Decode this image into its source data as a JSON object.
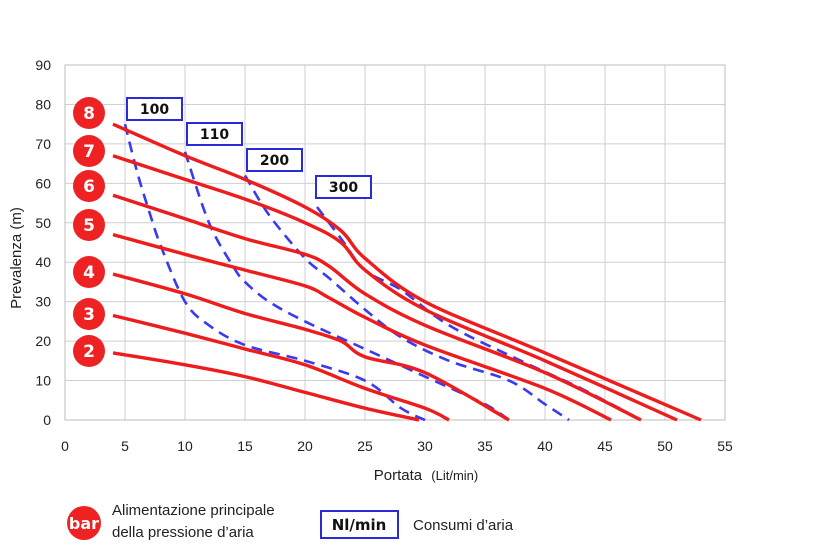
{
  "chart_data": {
    "type": "line",
    "xlabel": "Portata",
    "xlabel_unit": "(Lit/min)",
    "ylabel": "Prevalenza (m)",
    "xlim": [
      0,
      55
    ],
    "ylim": [
      0,
      90
    ],
    "xticks": [
      0,
      5,
      10,
      15,
      20,
      25,
      30,
      35,
      40,
      45,
      50,
      55
    ],
    "yticks": [
      0,
      10,
      20,
      30,
      40,
      50,
      60,
      70,
      80,
      90
    ],
    "grid": true,
    "pressure_series": [
      {
        "name": "8",
        "points": [
          [
            4,
            75
          ],
          [
            10,
            67
          ],
          [
            15,
            61
          ],
          [
            20,
            54
          ],
          [
            23,
            48
          ],
          [
            25,
            41
          ],
          [
            30,
            30
          ],
          [
            40,
            17
          ],
          [
            53,
            0
          ]
        ]
      },
      {
        "name": "7",
        "points": [
          [
            4,
            67
          ],
          [
            10,
            61
          ],
          [
            15,
            56
          ],
          [
            20,
            50
          ],
          [
            23,
            45
          ],
          [
            25,
            38
          ],
          [
            30,
            28
          ],
          [
            40,
            15
          ],
          [
            51,
            0
          ]
        ]
      },
      {
        "name": "6",
        "points": [
          [
            4,
            57
          ],
          [
            10,
            51
          ],
          [
            15,
            46
          ],
          [
            20,
            42
          ],
          [
            22,
            39
          ],
          [
            25,
            32
          ],
          [
            30,
            24
          ],
          [
            40,
            12
          ],
          [
            48,
            0
          ]
        ]
      },
      {
        "name": "5",
        "points": [
          [
            4,
            47
          ],
          [
            10,
            42
          ],
          [
            15,
            38
          ],
          [
            20,
            34
          ],
          [
            22,
            31
          ],
          [
            25,
            26
          ],
          [
            30,
            19
          ],
          [
            40,
            8
          ],
          [
            45.5,
            0
          ]
        ]
      },
      {
        "name": "4",
        "points": [
          [
            4,
            37
          ],
          [
            10,
            32
          ],
          [
            15,
            27
          ],
          [
            20,
            23
          ],
          [
            23,
            20
          ],
          [
            25,
            16
          ],
          [
            30,
            12
          ],
          [
            37,
            0
          ]
        ]
      },
      {
        "name": "3",
        "points": [
          [
            4,
            26.5
          ],
          [
            10,
            22
          ],
          [
            15,
            18
          ],
          [
            20,
            14
          ],
          [
            25,
            8
          ],
          [
            30,
            3
          ],
          [
            32,
            0
          ]
        ]
      },
      {
        "name": "2",
        "points": [
          [
            4,
            17
          ],
          [
            10,
            14
          ],
          [
            15,
            11
          ],
          [
            20,
            7
          ],
          [
            25,
            3
          ],
          [
            29.5,
            0
          ]
        ]
      }
    ],
    "consumption_series": [
      {
        "name": "100",
        "points": [
          [
            5,
            75
          ],
          [
            6,
            63
          ],
          [
            7,
            53
          ],
          [
            8,
            44
          ],
          [
            10,
            30
          ],
          [
            12,
            24
          ],
          [
            15,
            19
          ],
          [
            20,
            15
          ],
          [
            25,
            10
          ],
          [
            28,
            3
          ],
          [
            30,
            0
          ]
        ]
      },
      {
        "name": "110",
        "points": [
          [
            10,
            68
          ],
          [
            12,
            50
          ],
          [
            14,
            39
          ],
          [
            15,
            35
          ],
          [
            17,
            30
          ],
          [
            20,
            25
          ],
          [
            25,
            18
          ],
          [
            30,
            11
          ],
          [
            35,
            4
          ],
          [
            37,
            0
          ]
        ]
      },
      {
        "name": "200",
        "points": [
          [
            15,
            62
          ],
          [
            17,
            52
          ],
          [
            20,
            41
          ],
          [
            22,
            36
          ],
          [
            25,
            28
          ],
          [
            28,
            21
          ],
          [
            32,
            15
          ],
          [
            37,
            10
          ],
          [
            40,
            4
          ],
          [
            42,
            0
          ]
        ]
      },
      {
        "name": "300",
        "points": [
          [
            21,
            54
          ],
          [
            23,
            46
          ],
          [
            25,
            38
          ],
          [
            28,
            33
          ],
          [
            32,
            24
          ],
          [
            38,
            15
          ],
          [
            43,
            8
          ],
          [
            48,
            0
          ]
        ]
      }
    ],
    "pressure_labels": [
      "8",
      "7",
      "6",
      "5",
      "4",
      "3",
      "2"
    ],
    "consumption_labels": [
      "100",
      "110",
      "200",
      "300"
    ],
    "colors": {
      "pressure": "#ee1c1c",
      "consumption": "#3a3af0",
      "grid": "#cfcfcf",
      "badge": "#ee2222"
    }
  },
  "legend": {
    "pressure_symbol": "bar",
    "pressure_text_line1": "Alimentazione principale",
    "pressure_text_line2": "della pressione d’aria",
    "consumption_symbol": "Nl/min",
    "consumption_text": "Consumi d’aria"
  }
}
